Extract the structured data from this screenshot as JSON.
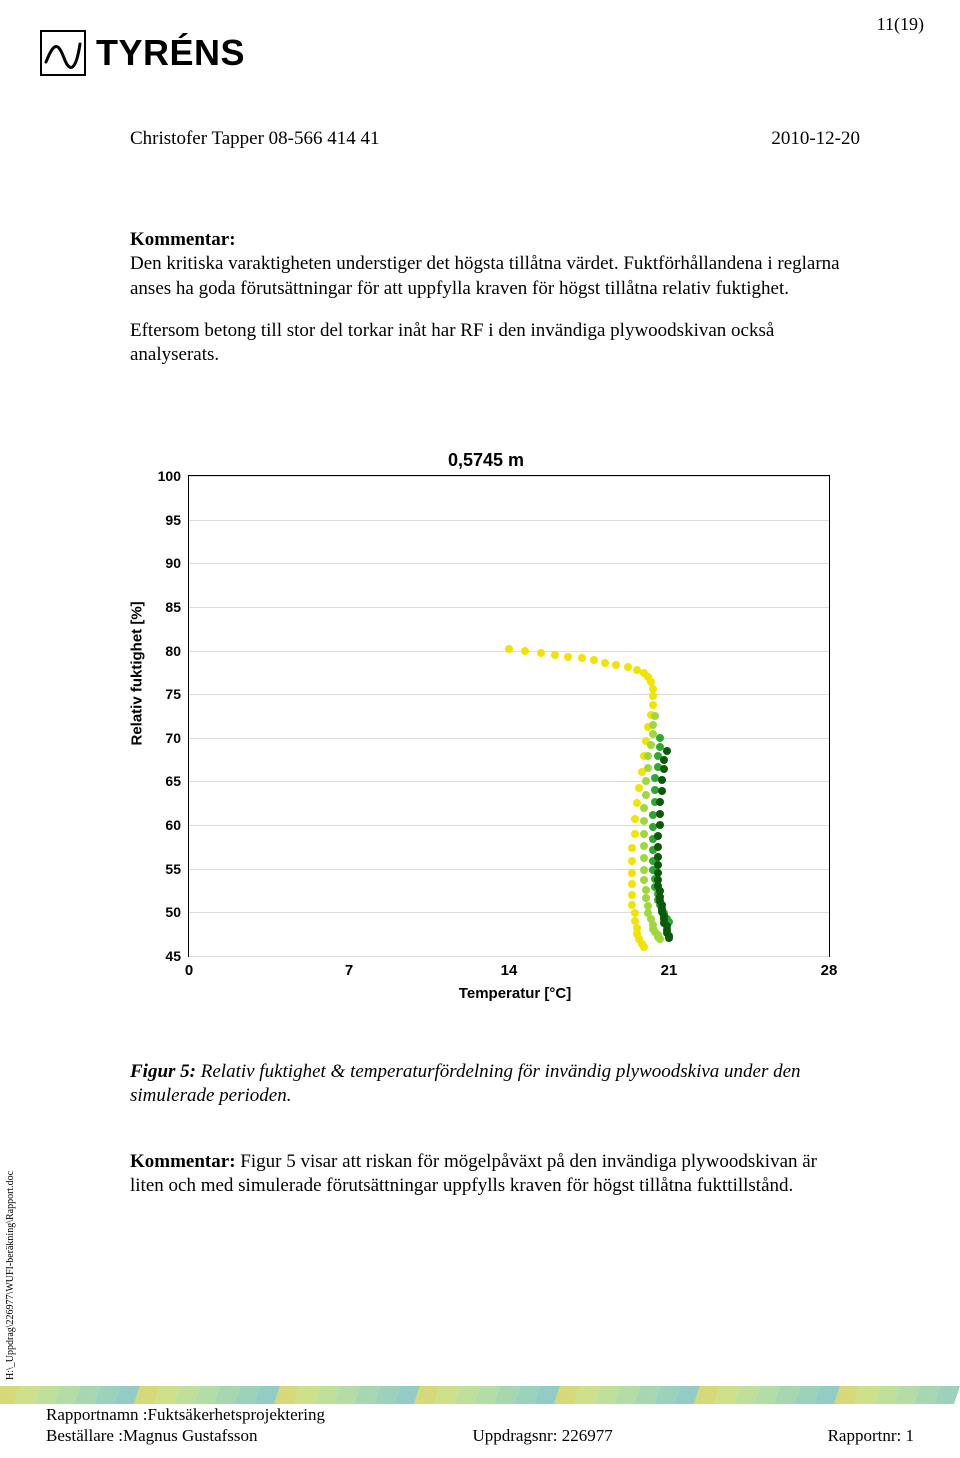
{
  "page_number": "11(19)",
  "logo_text": "TYRÉNS",
  "header": {
    "author": "Christofer Tapper 08-566 414 41",
    "date": "2010-12-20"
  },
  "comment1": {
    "label": "Kommentar:",
    "para1": "Den kritiska varaktigheten understiger det högsta tillåtna värdet. Fuktförhållandena i reglarna anses ha goda förutsättningar för att uppfylla kraven för högst tillåtna relativ fuktighet.",
    "para2": "Eftersom betong till stor del torkar inåt har RF i den invändiga plywoodskivan också analyserats."
  },
  "chart": {
    "type": "scatter",
    "title": "0,5745 m",
    "xlabel": "Temperatur [°C]",
    "ylabel": "Relativ fuktighet [%]",
    "xlim": [
      0,
      28
    ],
    "ylim": [
      45,
      100
    ],
    "xticks": [
      0,
      7,
      14,
      21,
      28
    ],
    "yticks": [
      45,
      50,
      55,
      60,
      65,
      70,
      75,
      80,
      85,
      90,
      95,
      100
    ],
    "background_color": "#ffffff",
    "grid_color": "#dcdcdc",
    "marker_size": 8,
    "series": [
      {
        "color": "#f2e300",
        "points": [
          [
            14.0,
            80.2
          ],
          [
            14.7,
            80.0
          ],
          [
            15.4,
            79.7
          ],
          [
            16.0,
            79.5
          ],
          [
            16.6,
            79.3
          ],
          [
            17.2,
            79.1
          ],
          [
            17.7,
            78.9
          ],
          [
            18.2,
            78.6
          ],
          [
            18.7,
            78.4
          ],
          [
            19.2,
            78.1
          ],
          [
            19.6,
            77.8
          ],
          [
            19.9,
            77.4
          ],
          [
            20.1,
            77.0
          ],
          [
            20.2,
            76.4
          ],
          [
            20.3,
            75.6
          ],
          [
            20.3,
            74.8
          ],
          [
            20.3,
            73.8
          ],
          [
            20.2,
            72.6
          ],
          [
            20.1,
            71.2
          ],
          [
            20.0,
            69.6
          ],
          [
            19.9,
            67.9
          ],
          [
            19.8,
            66.1
          ],
          [
            19.7,
            64.3
          ],
          [
            19.6,
            62.5
          ],
          [
            19.5,
            60.7
          ],
          [
            19.5,
            59.0
          ],
          [
            19.4,
            57.4
          ],
          [
            19.4,
            55.9
          ],
          [
            19.4,
            54.5
          ],
          [
            19.4,
            53.2
          ],
          [
            19.4,
            52.0
          ],
          [
            19.4,
            50.9
          ],
          [
            19.5,
            49.9
          ],
          [
            19.5,
            49.0
          ],
          [
            19.6,
            48.2
          ],
          [
            19.6,
            47.5
          ],
          [
            19.7,
            46.9
          ],
          [
            19.8,
            46.4
          ],
          [
            19.9,
            46.0
          ]
        ]
      },
      {
        "color": "#9fd83c",
        "points": [
          [
            20.4,
            72.5
          ],
          [
            20.3,
            71.5
          ],
          [
            20.3,
            70.4
          ],
          [
            20.2,
            69.2
          ],
          [
            20.1,
            67.9
          ],
          [
            20.1,
            66.5
          ],
          [
            20.0,
            65.0
          ],
          [
            20.0,
            63.5
          ],
          [
            19.9,
            62.0
          ],
          [
            19.9,
            60.5
          ],
          [
            19.9,
            59.0
          ],
          [
            19.9,
            57.6
          ],
          [
            19.9,
            56.2
          ],
          [
            19.9,
            54.9
          ],
          [
            19.9,
            53.7
          ],
          [
            20.0,
            52.6
          ],
          [
            20.0,
            51.6
          ],
          [
            20.1,
            50.7
          ],
          [
            20.1,
            49.9
          ],
          [
            20.2,
            49.2
          ],
          [
            20.3,
            48.6
          ],
          [
            20.3,
            48.1
          ],
          [
            20.4,
            47.7
          ],
          [
            20.5,
            47.4
          ],
          [
            20.5,
            47.2
          ],
          [
            20.6,
            47.0
          ]
        ]
      },
      {
        "color": "#2fa82f",
        "points": [
          [
            20.6,
            70.0
          ],
          [
            20.6,
            69.0
          ],
          [
            20.5,
            67.9
          ],
          [
            20.5,
            66.7
          ],
          [
            20.4,
            65.4
          ],
          [
            20.4,
            64.0
          ],
          [
            20.4,
            62.6
          ],
          [
            20.3,
            61.2
          ],
          [
            20.3,
            59.8
          ],
          [
            20.3,
            58.4
          ],
          [
            20.3,
            57.1
          ],
          [
            20.3,
            55.9
          ],
          [
            20.3,
            54.8
          ],
          [
            20.4,
            53.8
          ],
          [
            20.4,
            52.9
          ],
          [
            20.5,
            52.1
          ],
          [
            20.5,
            51.4
          ],
          [
            20.6,
            50.8
          ],
          [
            20.7,
            50.3
          ],
          [
            20.8,
            49.9
          ],
          [
            20.8,
            49.5
          ],
          [
            20.9,
            49.2
          ],
          [
            21.0,
            48.9
          ]
        ]
      },
      {
        "color": "#0a5a0a",
        "points": [
          [
            20.9,
            68.5
          ],
          [
            20.8,
            67.5
          ],
          [
            20.8,
            66.4
          ],
          [
            20.7,
            65.2
          ],
          [
            20.7,
            63.9
          ],
          [
            20.6,
            62.6
          ],
          [
            20.6,
            61.3
          ],
          [
            20.6,
            60.0
          ],
          [
            20.5,
            58.7
          ],
          [
            20.5,
            57.5
          ],
          [
            20.5,
            56.4
          ],
          [
            20.5,
            55.4
          ],
          [
            20.5,
            54.5
          ],
          [
            20.5,
            53.7
          ],
          [
            20.5,
            53.0
          ],
          [
            20.6,
            52.4
          ],
          [
            20.6,
            51.8
          ],
          [
            20.6,
            51.3
          ],
          [
            20.7,
            50.8
          ],
          [
            20.7,
            50.4
          ],
          [
            20.7,
            50.0
          ],
          [
            20.8,
            49.6
          ],
          [
            20.8,
            49.2
          ],
          [
            20.8,
            48.8
          ],
          [
            20.9,
            48.4
          ],
          [
            20.9,
            48.0
          ],
          [
            20.9,
            47.6
          ],
          [
            21.0,
            47.3
          ],
          [
            21.0,
            47.1
          ]
        ]
      }
    ]
  },
  "caption": {
    "fig_label": "Figur 5:",
    "text": "Relativ fuktighet & temperaturfördelning för invändig plywoodskiva under den simulerade perioden."
  },
  "comment2": {
    "label": "Kommentar:",
    "text": "Figur 5 visar att riskan för mögelpåväxt på den invändiga plywoodskivan är liten och med simulerade förutsättningar uppfylls kraven för högst tillåtna fukttillstånd."
  },
  "side_path": "H:\\_Uppdrag\\226977\\WUFI-beräkning\\Rapport.doc",
  "footer": {
    "report_name_label": "Rapportnamn :",
    "report_name": "Fuktsäkerhetsprojektering",
    "client_label": "Beställare :",
    "client": "Magnus Gustafsson",
    "uppdragsnr_label": "Uppdragsnr:",
    "uppdragsnr": "226977",
    "rapportnr_label": "Rapportnr:",
    "rapportnr": "1"
  },
  "footer_band_colors": [
    "#d6d97a",
    "#cfe08b",
    "#bfe09a",
    "#b3dca6",
    "#a7d7b1",
    "#9cd2bb",
    "#92ccc5"
  ]
}
